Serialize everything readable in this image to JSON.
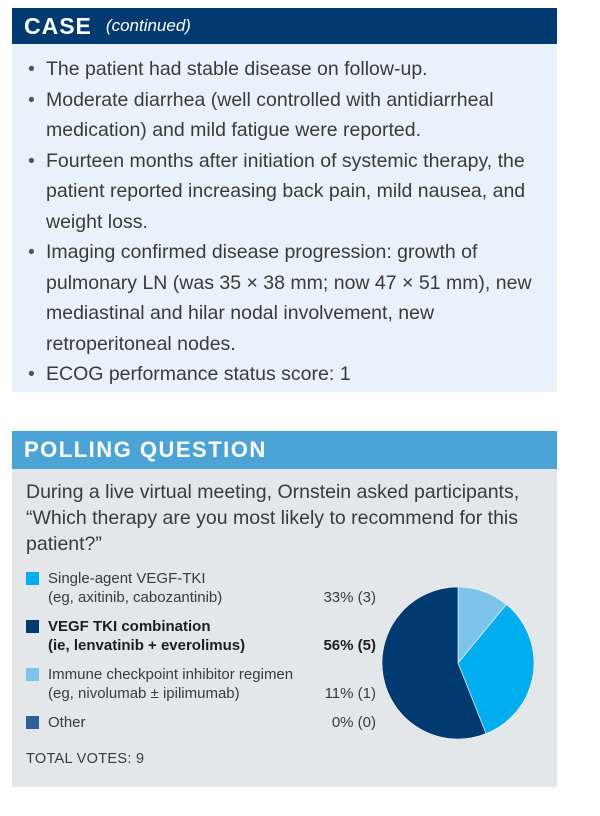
{
  "case": {
    "title": "CASE",
    "subtitle": "(continued)",
    "bullets": [
      "The patient had stable disease on follow-up.",
      "Moderate diarrhea (well controlled with antidiarrheal medication) and mild fatigue were reported.",
      "Fourteen months after initiation of systemic therapy, the patient reported increasing back pain, mild nausea, and weight loss.",
      "Imaging confirmed disease progression: growth of pulmonary LN (was 35 × 38 mm; now 47 × 51 mm), new mediastinal and hilar nodal involvement, new retroperitoneal nodes.",
      "ECOG performance status score: 1"
    ]
  },
  "poll": {
    "title": "POLLING QUESTION",
    "question": "During a live virtual meeting, Ornstein asked participants, “Which therapy are you most likely to recommend for this patient?”",
    "total": "TOTAL VOTES: 9"
  },
  "chart_data": {
    "type": "pie",
    "title": "POLLING QUESTION",
    "categories": [
      "Single-agent VEGF-TKI (eg, axitinib, cabozantinib)",
      "VEGF TKI combination (ie, lenvatinib + everolimus)",
      "Immune checkpoint inhibitor regimen (eg, nivolumab ± ipilimumab)",
      "Other"
    ],
    "values": [
      33,
      56,
      11,
      0
    ],
    "votes": [
      3,
      5,
      1,
      0
    ],
    "slices": [
      {
        "line1": "Single-agent VEGF-TKI",
        "line2": "(eg, axitinib, cabozantinib)",
        "pct_label": "33% (3)",
        "value": 33,
        "color": "#00aeef"
      },
      {
        "line1": "VEGF TKI combination",
        "line2": "(ie, lenvatinib + everolimus)",
        "pct_label": "56% (5)",
        "value": 56,
        "color": "#003a70"
      },
      {
        "line1": "Immune checkpoint inhibitor regimen",
        "line2": "(eg, nivolumab ± ipilimumab)",
        "pct_label": "11% (1)",
        "value": 11,
        "color": "#7cc4ea"
      },
      {
        "line1": "Other",
        "line2": "",
        "pct_label": "0% (0)",
        "value": 0,
        "color": "#2f5f9a"
      }
    ],
    "total_votes": 9,
    "legend": "left"
  }
}
